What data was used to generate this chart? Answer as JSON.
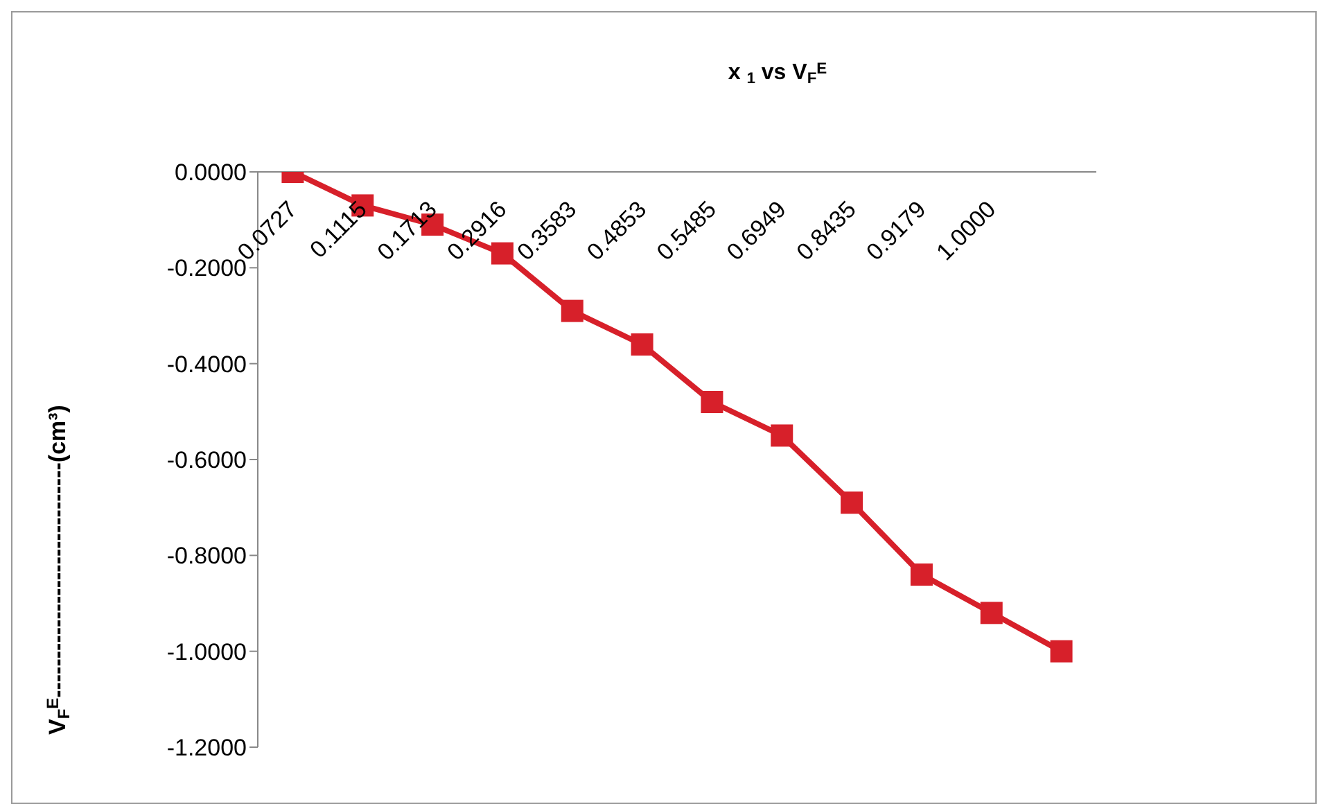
{
  "chart_data": {
    "type": "line",
    "title": "x $_{1}$ vs V$_{F}$$^{E}$",
    "ylabel": "V$_{F}$$^{E}$------------------------------(cm³)",
    "categories": [
      "0.0727",
      "0.1115",
      "0.1713",
      "0.2916",
      "0.3583",
      "0.4853",
      "0.5485",
      "0.6949",
      "0.8435",
      "0.9179",
      "1.0000",
      null
    ],
    "series": [
      {
        "color": "#d7202a",
        "values": [
          0,
          -0.07,
          -0.11,
          -0.17,
          -0.29,
          -0.36,
          -0.48,
          -0.55,
          -0.69,
          -0.84,
          -0.92,
          -1.0
        ]
      }
    ],
    "ylim": [
      -1.2,
      0
    ],
    "yticks": [
      {
        "value": 0,
        "label": "0.0000"
      },
      {
        "value": -0.2,
        "label": "-0.2000"
      },
      {
        "value": -0.4,
        "label": "-0.4000"
      },
      {
        "value": -0.6,
        "label": "-0.6000"
      },
      {
        "value": -0.8,
        "label": "-0.8000"
      },
      {
        "value": -1.0,
        "label": "-1.0000"
      },
      {
        "value": -1.2,
        "label": "-1.2000"
      }
    ],
    "grid": false,
    "legend": false,
    "marker": "square",
    "line_style": "solid"
  }
}
